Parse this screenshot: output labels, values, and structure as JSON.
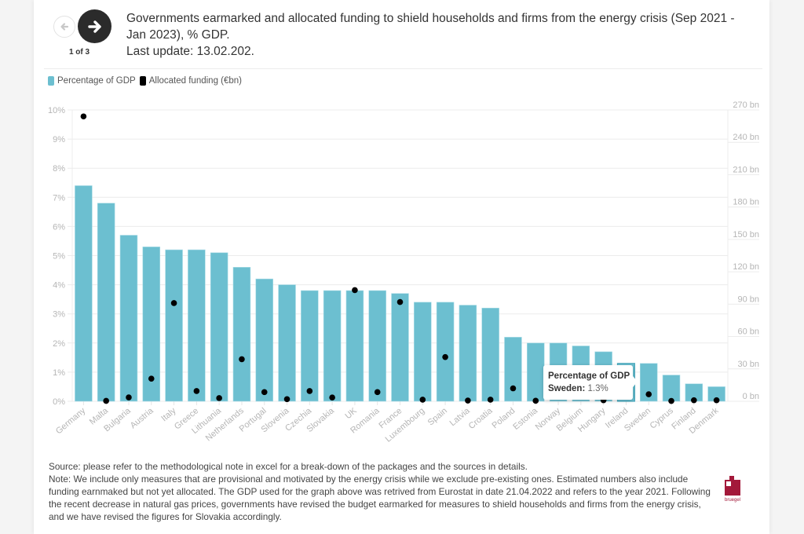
{
  "navigation": {
    "back_icon": "arrow-left-icon",
    "next_icon": "arrow-right-icon",
    "page_indicator": "1 of 3"
  },
  "header": {
    "title_line1": "Governments earmarked and allocated funding to shield households and firms from the energy crisis (Sep 2021 - Jan 2023), % GDP.",
    "last_update": "Last update: 13.02.202."
  },
  "colors": {
    "bar": "#6cbfd0",
    "dot": "#000000",
    "logo": "#a3193a"
  },
  "tooltip": {
    "title": "Percentage of GDP",
    "label": "Sweden:",
    "value": "1.3%"
  },
  "footer": {
    "source": "Source: please refer to the methodological note in excel for a break-down of the packages and the sources in details.",
    "note": "Note: We include only measures that are provisional and motivated by the energy crisis while we exclude pre-existing ones. Estimated numbers also include funding earnmaked but not yet allocated. The GDP used for the graph above was retrived from Eurostat in date 21.04.2022 and refers to the year 2021. Following the recent decrease in natural gas prices, governments have revised the budget earmarked for measures to shield households and firms from the energy crisis, and we have revised the figures for Slovakia accordingly.",
    "logo_text": "bruegel"
  },
  "chart_data": {
    "type": "bar",
    "title": "Governments earmarked and allocated funding to shield households and firms from the energy crisis (Sep 2021 - Jan 2023), % GDP.",
    "categories": [
      "Germany",
      "Malta",
      "Bulgaria",
      "Austria",
      "Italy",
      "Greece",
      "Lithuania",
      "Netherlands",
      "Portugal",
      "Slovenia",
      "Czechia",
      "Slovakia",
      "UK",
      "Romania",
      "France",
      "Luxembourg",
      "Spain",
      "Latvia",
      "Croatia",
      "Poland",
      "Estonia",
      "Norway",
      "Belgium",
      "Hungary",
      "Ireland",
      "Sweden",
      "Cyprus",
      "Finland",
      "Denmark"
    ],
    "series": [
      {
        "name": "Percentage of GDP",
        "type": "bar",
        "axis": "left",
        "values": [
          7.4,
          6.8,
          5.7,
          5.3,
          5.2,
          5.2,
          5.1,
          4.6,
          4.2,
          4.0,
          3.8,
          3.8,
          3.8,
          3.8,
          3.7,
          3.4,
          3.4,
          3.3,
          3.2,
          2.2,
          2.0,
          2.0,
          1.9,
          1.7,
          1.3,
          1.3,
          0.9,
          0.6,
          0.5
        ]
      },
      {
        "name": "Allocated funding (€bn)",
        "type": "scatter",
        "axis": "right",
        "values": [
          264,
          0.4,
          3.6,
          21,
          91,
          9.5,
          3,
          39,
          8.5,
          2,
          9.5,
          3.5,
          103,
          8.5,
          92,
          1.5,
          41,
          0.7,
          1.5,
          12,
          0.5,
          null,
          null,
          1,
          null,
          6.5,
          0.3,
          1,
          1
        ]
      }
    ],
    "legend": [
      "Percentage of GDP",
      "Allocated funding (€bn)"
    ],
    "legend_position": "top-left",
    "y_left": {
      "ylim": [
        0,
        10
      ],
      "ticks": [
        "0%",
        "1%",
        "2%",
        "3%",
        "4%",
        "5%",
        "6%",
        "7%",
        "8%",
        "9%",
        "10%"
      ]
    },
    "y_right": {
      "ylim": [
        0,
        270
      ],
      "ticks": [
        "0 bn",
        "30 bn",
        "60 bn",
        "90 bn",
        "120 bn",
        "150 bn",
        "180 bn",
        "210 bn",
        "240 bn",
        "270 bn"
      ]
    },
    "xlabel": "",
    "ylabel": "",
    "grid": true,
    "highlighted": "Ireland"
  }
}
